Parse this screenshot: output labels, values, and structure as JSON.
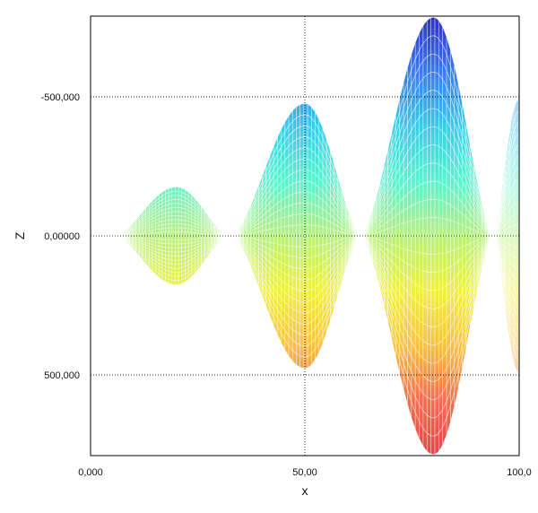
{
  "chart_data": {
    "type": "area",
    "title": "",
    "xlabel": "x",
    "ylabel": "Z",
    "xlim": [
      0,
      100
    ],
    "ylim": [
      -790000,
      790000
    ],
    "y_inverted": true,
    "grid": true,
    "x_ticks": [
      {
        "value": 0,
        "label": "0,000"
      },
      {
        "value": 50,
        "label": "50,00"
      },
      {
        "value": 100,
        "label": "100,0"
      }
    ],
    "y_ticks": [
      {
        "value": -500000,
        "label": "-500,000"
      },
      {
        "value": 0,
        "label": "0,00000"
      },
      {
        "value": 500000,
        "label": "500,000"
      }
    ],
    "lobes": [
      {
        "x_start": 6,
        "x_center": 20,
        "x_end": 32,
        "amplitude": 175000
      },
      {
        "x_start": 33,
        "x_center": 50,
        "x_end": 63,
        "amplitude": 475000
      },
      {
        "x_start": 63,
        "x_center": 80,
        "x_end": 94,
        "amplitude": 785000
      },
      {
        "x_start": 94,
        "x_center": 100,
        "x_end": 100,
        "amplitude": 490000
      }
    ],
    "colormap": [
      "#3030c0",
      "#3a7ae8",
      "#40c8e8",
      "#60f0d0",
      "#b8f080",
      "#f0f040",
      "#f8c048",
      "#f07050",
      "#e04848"
    ]
  }
}
